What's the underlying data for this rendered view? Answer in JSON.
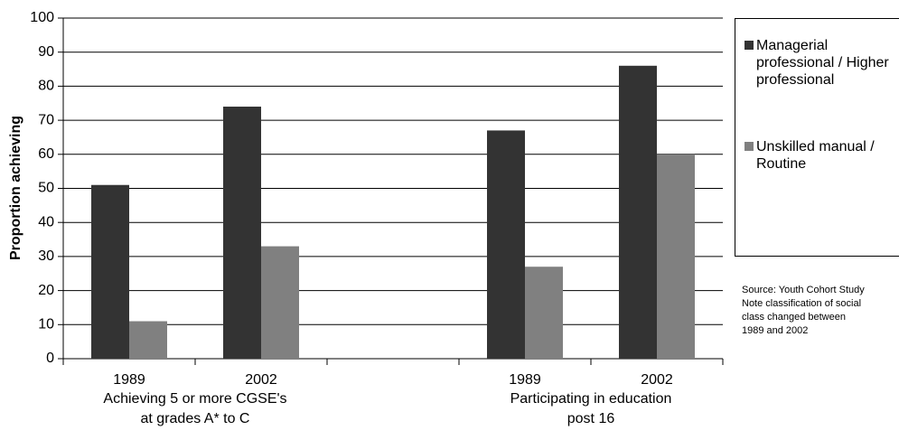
{
  "chart_data": {
    "type": "bar",
    "y_label": "Proportion achieving",
    "categories": [
      "1989",
      "2002",
      null,
      "1989",
      "2002"
    ],
    "group_labels": [
      [
        "Achieving 5 or more CGSE's",
        "at grades A* to C"
      ],
      [
        "Participating in education",
        "post 16"
      ]
    ],
    "series": [
      {
        "name": "Managerial professional / Higher professional",
        "color": "#333333",
        "values": [
          51,
          74,
          null,
          67,
          86
        ]
      },
      {
        "name": "Unskilled manual / Routine",
        "color": "#808080",
        "values": [
          11,
          33,
          null,
          27,
          60
        ]
      }
    ],
    "ylim": [
      0,
      100
    ],
    "yticks": [
      0,
      10,
      20,
      30,
      40,
      50,
      60,
      70,
      80,
      90,
      100
    ],
    "grid": true,
    "note": [
      "Source: Youth Cohort Study",
      "Note classification of social",
      "class changed between",
      "1989 and 2002"
    ]
  }
}
